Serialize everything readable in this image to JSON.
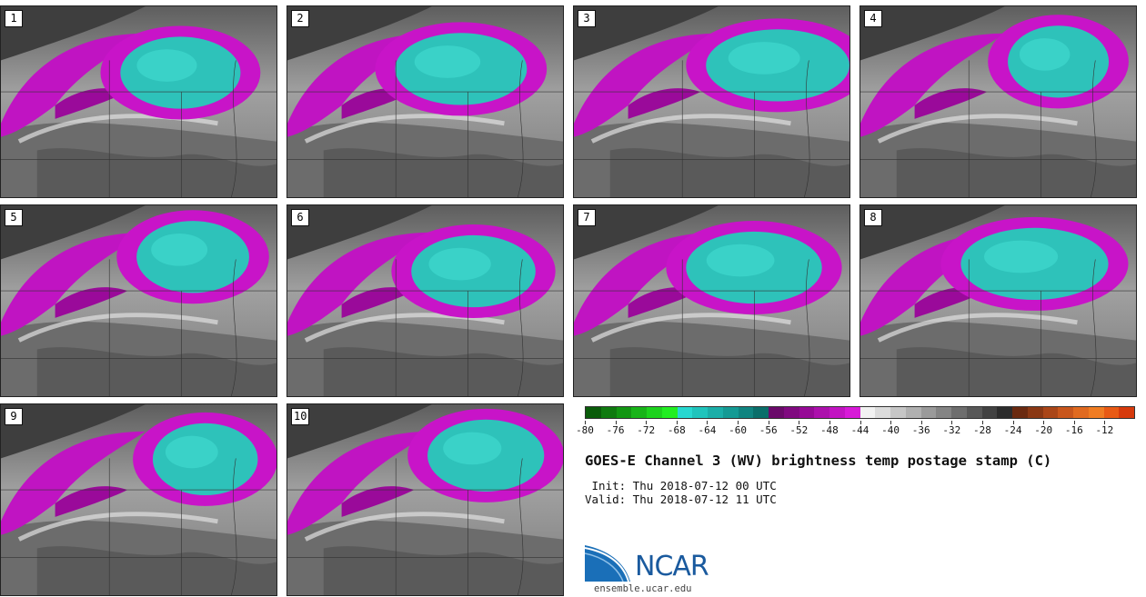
{
  "panels": [
    {
      "label": "1"
    },
    {
      "label": "2"
    },
    {
      "label": "3"
    },
    {
      "label": "4"
    },
    {
      "label": "5"
    },
    {
      "label": "6"
    },
    {
      "label": "7"
    },
    {
      "label": "8"
    },
    {
      "label": "9"
    },
    {
      "label": "10"
    }
  ],
  "colorbar": {
    "ticks": [
      "-80",
      "-76",
      "-72",
      "-68",
      "-64",
      "-60",
      "-56",
      "-52",
      "-48",
      "-44",
      "-40",
      "-36",
      "-32",
      "-28",
      "-24",
      "-20",
      "-16",
      "-12"
    ],
    "colors": [
      "#0a5c0a",
      "#0f7a0f",
      "#129612",
      "#18b418",
      "#1dd21d",
      "#22ee22",
      "#27d8d0",
      "#1fc4bc",
      "#1aaea8",
      "#149a94",
      "#0f8480",
      "#0a6e6a",
      "#6a0a6a",
      "#800a80",
      "#960a96",
      "#ac10ac",
      "#c214c2",
      "#d81ad8",
      "#f2f2f2",
      "#dcdcdc",
      "#c6c6c6",
      "#b0b0b0",
      "#9a9a9a",
      "#848484",
      "#6e6e6e",
      "#585858",
      "#424242",
      "#2c2c2c",
      "#6a2a10",
      "#8a3814",
      "#aa4618",
      "#c8561c",
      "#e06a20",
      "#f07c22",
      "#e85a14",
      "#d63a0c"
    ]
  },
  "title": "GOES-E Channel 3 (WV) brightness temp postage stamp (C)",
  "init": " Init: Thu 2018-07-12 00 UTC",
  "valid": "Valid: Thu 2018-07-12 11 UTC",
  "logo": {
    "name": "NCAR",
    "url": "ensemble.ucar.edu"
  }
}
